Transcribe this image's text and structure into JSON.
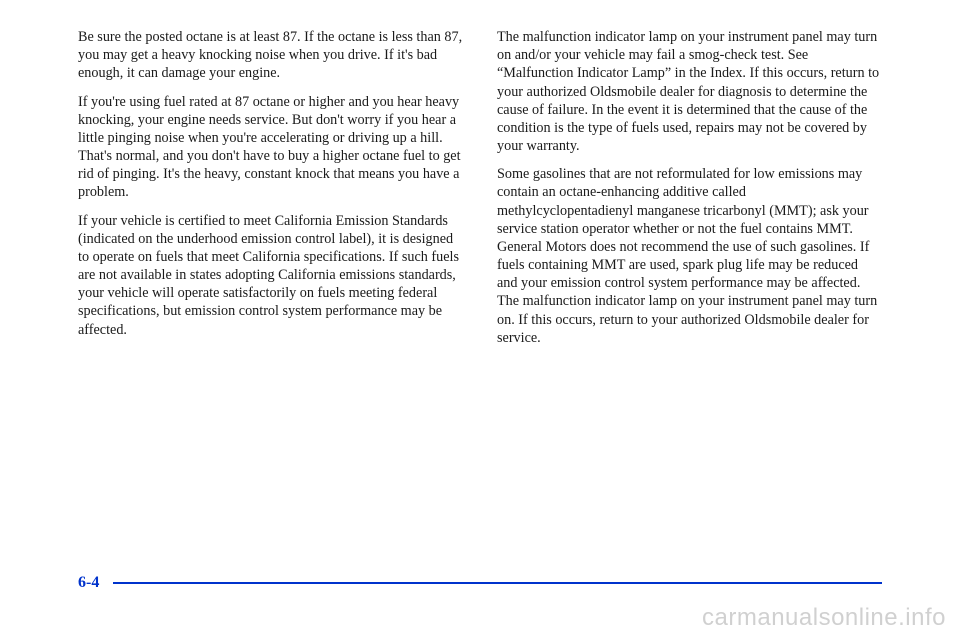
{
  "left": {
    "p1": "Be sure the posted octane is at least 87. If the octane is less than 87, you may get a heavy knocking noise when you drive. If it's bad enough, it can damage your engine.",
    "p2": "If you're using fuel rated at 87 octane or higher and you hear heavy knocking, your engine needs service. But don't worry if you hear a little pinging noise when you're accelerating or driving up a hill. That's normal, and you don't have to buy a higher octane fuel to get rid of pinging. It's the heavy, constant knock that means you have a problem.",
    "p3": "If your vehicle is certified to meet California Emission Standards (indicated on the underhood emission control label), it is designed to operate on fuels that meet California specifications. If such fuels are not available in states adopting California emissions standards, your vehicle will operate satisfactorily on fuels meeting federal specifications, but emission control system performance may be affected."
  },
  "right": {
    "p1": "The malfunction indicator lamp on your instrument panel may turn on and/or your vehicle may fail a smog-check test. See “Malfunction Indicator Lamp” in the Index. If this occurs, return to your authorized Oldsmobile dealer for diagnosis to determine the cause of failure. In the event it is determined that the cause of the condition is the type of fuels used, repairs may not be covered by your warranty.",
    "p2": "Some gasolines that are not reformulated for low emissions may contain an octane-enhancing additive called methylcyclopentadienyl manganese tricarbonyl (MMT); ask your service station operator whether or not the fuel contains MMT. General Motors does not recommend the use of such gasolines. If fuels containing MMT are used, spark plug life may be reduced and your emission control system performance may be affected. The malfunction indicator lamp on your instrument panel may turn on. If this occurs, return to your authorized Oldsmobile dealer for service."
  },
  "footer": {
    "page_num": "6-4"
  },
  "watermark": "carmanualsonline.info",
  "colors": {
    "accent": "#0033cc",
    "text": "#1a1a1a",
    "watermark": "rgba(120,120,120,0.35)",
    "background": "#ffffff"
  }
}
